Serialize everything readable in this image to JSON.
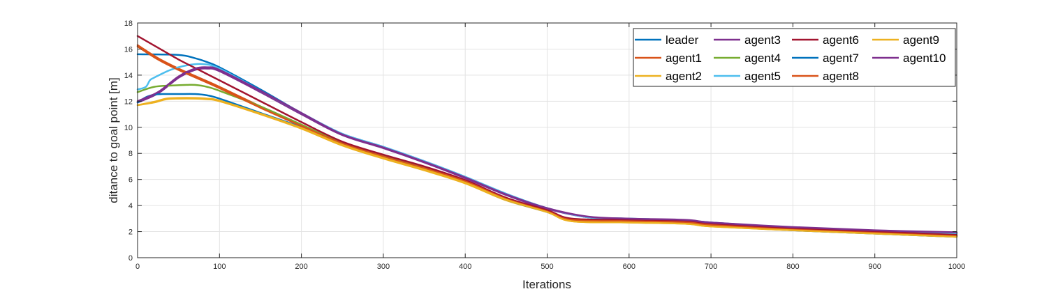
{
  "chart_data": {
    "type": "line",
    "title": "",
    "xlabel": "Iterations",
    "ylabel": "ditance to goal point [m]",
    "xlim": [
      0,
      1000
    ],
    "ylim": [
      0,
      18
    ],
    "xticks": [
      "0",
      "100",
      "200",
      "300",
      "400",
      "500",
      "600",
      "700",
      "800",
      "900",
      "1000"
    ],
    "yticks": [
      "0",
      "2",
      "4",
      "6",
      "8",
      "10",
      "12",
      "14",
      "16",
      "18"
    ],
    "grid": true,
    "legend_position": "top-right",
    "legend_columns": 4,
    "series": [
      {
        "name": "leader",
        "color": "#0072BD",
        "x": [
          0,
          50,
          70,
          85,
          100,
          150,
          200,
          250,
          300,
          350,
          400,
          450,
          500,
          550,
          600,
          670,
          700,
          800,
          900,
          1000
        ],
        "y": [
          15.6,
          15.55,
          15.3,
          15.0,
          14.6,
          12.9,
          11.1,
          9.5,
          8.5,
          7.4,
          6.2,
          4.9,
          3.8,
          3.1,
          3.0,
          2.85,
          2.7,
          2.3,
          2.05,
          1.85
        ]
      },
      {
        "name": "agent1",
        "color": "#D95319",
        "x": [
          0,
          25,
          50,
          75,
          100,
          150,
          200,
          250,
          300,
          350,
          400,
          450,
          500,
          530,
          600,
          670,
          700,
          800,
          900,
          1000
        ],
        "y": [
          16.3,
          15.3,
          14.5,
          13.8,
          13.1,
          11.6,
          10.2,
          8.8,
          7.8,
          6.9,
          5.9,
          4.5,
          3.6,
          2.95,
          2.85,
          2.75,
          2.55,
          2.2,
          1.95,
          1.7
        ]
      },
      {
        "name": "agent2",
        "color": "#EDB120",
        "x": [
          0,
          20,
          35,
          50,
          70,
          85,
          100,
          150,
          200,
          250,
          300,
          350,
          400,
          450,
          500,
          530,
          600,
          670,
          700,
          800,
          900,
          1000
        ],
        "y": [
          11.7,
          11.9,
          12.15,
          12.2,
          12.2,
          12.15,
          12.0,
          11.0,
          9.9,
          8.6,
          7.6,
          6.7,
          5.7,
          4.4,
          3.5,
          2.8,
          2.7,
          2.6,
          2.4,
          2.1,
          1.85,
          1.6
        ]
      },
      {
        "name": "agent3",
        "color": "#7E2F8E",
        "x": [
          0,
          25,
          50,
          70,
          85,
          100,
          150,
          200,
          250,
          300,
          350,
          400,
          450,
          500,
          550,
          600,
          670,
          700,
          800,
          900,
          1000
        ],
        "y": [
          11.9,
          12.6,
          13.8,
          14.4,
          14.5,
          14.3,
          12.7,
          11.0,
          9.4,
          8.4,
          7.3,
          6.1,
          4.8,
          3.75,
          3.1,
          2.95,
          2.85,
          2.65,
          2.3,
          2.05,
          1.9
        ]
      },
      {
        "name": "agent4",
        "color": "#77AC30",
        "x": [
          0,
          20,
          40,
          60,
          70,
          85,
          100,
          150,
          200,
          250,
          300,
          350,
          400,
          450,
          500,
          530,
          600,
          670,
          700,
          800,
          900,
          1000
        ],
        "y": [
          12.7,
          13.1,
          13.2,
          13.25,
          13.25,
          13.1,
          12.8,
          11.6,
          10.2,
          8.8,
          7.8,
          6.9,
          5.85,
          4.5,
          3.55,
          2.9,
          2.8,
          2.7,
          2.5,
          2.15,
          1.9,
          1.65
        ]
      },
      {
        "name": "agent5",
        "color": "#4DBEEE",
        "x": [
          0,
          10,
          15,
          20,
          40,
          60,
          80,
          100,
          150,
          200,
          250,
          300,
          350,
          400,
          450,
          500,
          550,
          600,
          670,
          700,
          800,
          900,
          1000
        ],
        "y": [
          12.9,
          13.1,
          13.6,
          13.8,
          14.4,
          14.75,
          14.85,
          14.5,
          12.8,
          11.1,
          9.5,
          8.5,
          7.4,
          6.2,
          4.9,
          3.8,
          3.1,
          3.0,
          2.85,
          2.7,
          2.3,
          2.05,
          1.85
        ]
      },
      {
        "name": "agent6",
        "color": "#A2142F",
        "x": [
          0,
          25,
          50,
          75,
          100,
          150,
          200,
          250,
          300,
          350,
          400,
          450,
          500,
          530,
          600,
          670,
          700,
          800,
          900,
          1000
        ],
        "y": [
          17.0,
          16.1,
          15.2,
          14.4,
          13.6,
          12.0,
          10.4,
          8.9,
          7.9,
          7.0,
          5.95,
          4.6,
          3.65,
          3.0,
          2.9,
          2.8,
          2.6,
          2.25,
          2.0,
          1.75
        ]
      },
      {
        "name": "agent7",
        "color": "#0072BD",
        "x": [
          0,
          10,
          20,
          30,
          50,
          70,
          85,
          100,
          150,
          200,
          250,
          300,
          350,
          400,
          450,
          500,
          530,
          600,
          670,
          700,
          800,
          900,
          1000
        ],
        "y": [
          11.9,
          12.3,
          12.5,
          12.55,
          12.55,
          12.55,
          12.45,
          12.2,
          11.1,
          10.0,
          8.7,
          7.7,
          6.8,
          5.8,
          4.45,
          3.5,
          2.85,
          2.75,
          2.65,
          2.45,
          2.1,
          1.85,
          1.6
        ]
      },
      {
        "name": "agent8",
        "color": "#D95319",
        "x": [
          0,
          25,
          50,
          75,
          100,
          150,
          200,
          250,
          300,
          350,
          400,
          450,
          500,
          530,
          600,
          670,
          700,
          800,
          900,
          1000
        ],
        "y": [
          16.2,
          15.2,
          14.4,
          13.7,
          13.0,
          11.5,
          10.1,
          8.75,
          7.75,
          6.85,
          5.85,
          4.5,
          3.55,
          2.9,
          2.8,
          2.7,
          2.5,
          2.15,
          1.9,
          1.65
        ]
      },
      {
        "name": "agent9",
        "color": "#EDB120",
        "x": [
          0,
          20,
          35,
          50,
          70,
          85,
          100,
          150,
          200,
          250,
          300,
          350,
          400,
          450,
          500,
          530,
          600,
          670,
          700,
          800,
          900,
          1000
        ],
        "y": [
          11.7,
          11.95,
          12.2,
          12.25,
          12.25,
          12.2,
          12.05,
          11.05,
          9.95,
          8.65,
          7.65,
          6.75,
          5.75,
          4.45,
          3.5,
          2.8,
          2.7,
          2.6,
          2.4,
          2.1,
          1.85,
          1.6
        ]
      },
      {
        "name": "agent10",
        "color": "#7E2F8E",
        "x": [
          0,
          25,
          50,
          70,
          85,
          100,
          150,
          200,
          250,
          300,
          350,
          400,
          450,
          500,
          550,
          600,
          670,
          700,
          800,
          900,
          1000
        ],
        "y": [
          12.0,
          12.7,
          13.9,
          14.5,
          14.6,
          14.4,
          12.8,
          11.1,
          9.45,
          8.45,
          7.35,
          6.15,
          4.85,
          3.8,
          3.15,
          3.0,
          2.9,
          2.7,
          2.35,
          2.1,
          1.95
        ]
      }
    ]
  }
}
